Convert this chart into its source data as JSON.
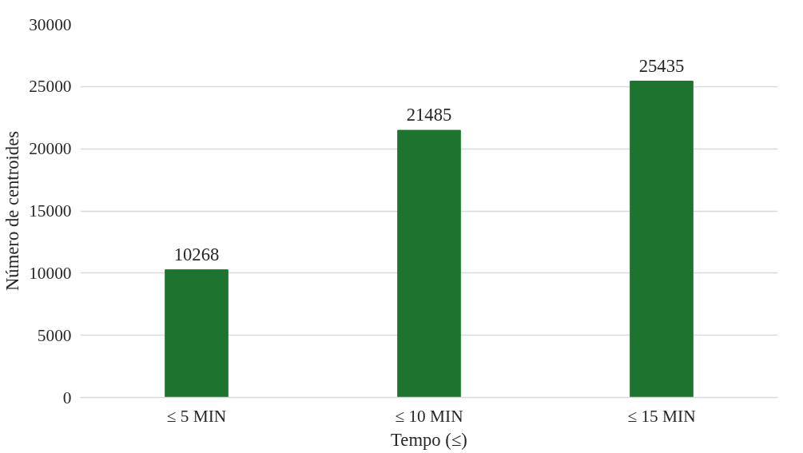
{
  "chart_data": {
    "type": "bar",
    "xlabel": "Tempo (≤)",
    "ylabel": "Número de centroides",
    "categories": [
      "≤ 5 MIN",
      "≤ 10 MIN",
      "≤ 15 MIN"
    ],
    "values": [
      10268,
      21485,
      25435
    ],
    "color": "#1e742f",
    "ylim": [
      0,
      30000
    ],
    "yticks": [
      0,
      5000,
      10000,
      15000,
      20000,
      25000,
      30000
    ],
    "grid": "y",
    "data_labels": true
  }
}
